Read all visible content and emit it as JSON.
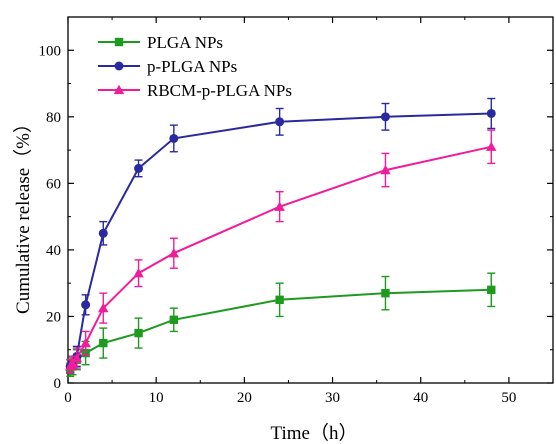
{
  "chart_data": {
    "type": "line",
    "xlabel": "Time（h）",
    "ylabel": "Cumulative release（%）",
    "xlim": [
      0,
      55
    ],
    "ylim": [
      0,
      110
    ],
    "xticks": [
      0,
      10,
      20,
      30,
      40,
      50
    ],
    "yticks": [
      0,
      20,
      40,
      60,
      80,
      100
    ],
    "xtick_labels": [
      "0",
      "10",
      "20",
      "30",
      "40",
      "50"
    ],
    "ytick_labels": [
      "0",
      "20",
      "40",
      "60",
      "80",
      "100"
    ],
    "legend_position": "top-left",
    "grid": false,
    "series": [
      {
        "name": "PLGA NPs",
        "color": "#1e9a1e",
        "marker": "square",
        "x": [
          0.25,
          0.5,
          1,
          2,
          4,
          8,
          12,
          24,
          36,
          48
        ],
        "y": [
          4,
          5,
          7,
          9,
          12,
          15,
          19,
          25,
          27,
          28
        ],
        "error": [
          2,
          2.5,
          3,
          3.5,
          4.5,
          4.5,
          3.5,
          5,
          5,
          5
        ]
      },
      {
        "name": "p-PLGA NPs",
        "color": "#2a2aa0",
        "marker": "circle",
        "x": [
          0.25,
          0.5,
          1,
          2,
          4,
          8,
          12,
          24,
          36,
          48
        ],
        "y": [
          5,
          6,
          8,
          23.5,
          45,
          64.5,
          73.5,
          78.5,
          80,
          81
        ],
        "error": [
          2,
          2,
          3,
          3,
          3.5,
          2.5,
          4,
          4,
          4,
          4.5
        ]
      },
      {
        "name": "RBCM-p-PLGA NPs",
        "color": "#f01c9a",
        "marker": "triangle",
        "x": [
          0.25,
          0.5,
          1,
          2,
          4,
          8,
          12,
          24,
          36,
          48
        ],
        "y": [
          5,
          6,
          7.5,
          12,
          22.5,
          33,
          39,
          53,
          64,
          71
        ],
        "error": [
          2,
          2,
          3,
          3.5,
          4.5,
          4,
          4.5,
          4.5,
          5,
          5
        ]
      }
    ]
  }
}
